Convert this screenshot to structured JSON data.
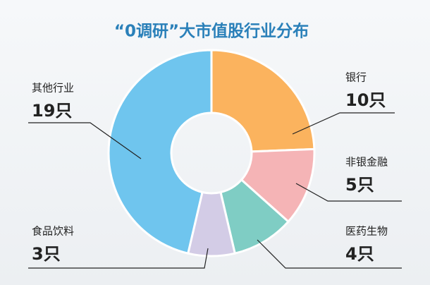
{
  "chart_data": {
    "type": "donut",
    "title": "“0调研”大市值股行业分布",
    "categories": [
      "银行",
      "非银金融",
      "医药生物",
      "食品饮料",
      "其他行业"
    ],
    "values": [
      10,
      5,
      4,
      3,
      19
    ],
    "value_labels": [
      "10只",
      "5只",
      "4只",
      "3只",
      "19只"
    ],
    "colors": [
      "#fbb35e",
      "#f5b4b6",
      "#7fcdc4",
      "#d3cce6",
      "#6fc5ee"
    ]
  }
}
